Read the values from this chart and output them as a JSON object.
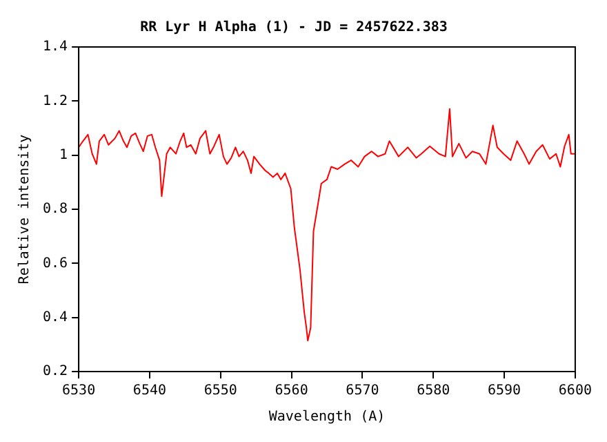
{
  "chart_data": {
    "type": "line",
    "title": "RR Lyr H Alpha (1) - JD = 2457622.383",
    "xlabel": "Wavelength (A)",
    "ylabel": "Relative intensity",
    "xlim": [
      6530,
      6600
    ],
    "ylim": [
      0.2,
      1.4
    ],
    "xticks": [
      6530,
      6540,
      6550,
      6560,
      6570,
      6580,
      6590,
      6600
    ],
    "yticks": [
      0.2,
      0.4,
      0.6,
      0.8,
      1,
      1.2,
      1.4
    ],
    "grid": false,
    "legend": false,
    "marker": "none",
    "line_style": "solid",
    "series": [
      {
        "color": "#ff0000",
        "x": [
          6530.0,
          6530.6,
          6531.3,
          6531.9,
          6532.5,
          6532.9,
          6533.6,
          6534.2,
          6535.1,
          6535.7,
          6536.3,
          6536.8,
          6537.4,
          6538.0,
          6538.6,
          6539.1,
          6539.7,
          6540.3,
          6540.8,
          6541.4,
          6541.7,
          6542.4,
          6542.9,
          6543.7,
          6544.3,
          6544.8,
          6545.2,
          6545.8,
          6546.5,
          6547.1,
          6547.9,
          6548.5,
          6549.0,
          6549.8,
          6550.4,
          6550.9,
          6551.5,
          6552.1,
          6552.6,
          6553.2,
          6553.8,
          6554.3,
          6554.7,
          6555.5,
          6556.3,
          6556.8,
          6557.4,
          6558.0,
          6558.5,
          6559.1,
          6559.9,
          6560.4,
          6561.2,
          6561.8,
          6562.1,
          6562.3,
          6562.7,
          6563.1,
          6563.7,
          6564.2,
          6565.0,
          6565.6,
          6566.5,
          6567.5,
          6568.4,
          6569.4,
          6570.3,
          6571.3,
          6572.2,
          6573.2,
          6573.8,
          6575.1,
          6576.4,
          6577.6,
          6578.3,
          6579.5,
          6580.8,
          6581.7,
          6582.3,
          6582.7,
          6583.6,
          6584.6,
          6585.5,
          6586.5,
          6587.4,
          6588.4,
          6589.0,
          6589.9,
          6590.9,
          6591.8,
          6592.8,
          6593.5,
          6594.5,
          6595.4,
          6596.4,
          6597.3,
          6597.9,
          6598.5,
          6599.1,
          6599.4,
          6600.0
        ],
        "values": [
          1.029,
          1.052,
          1.076,
          1.005,
          0.967,
          1.052,
          1.076,
          1.038,
          1.062,
          1.09,
          1.052,
          1.029,
          1.071,
          1.081,
          1.043,
          1.014,
          1.071,
          1.076,
          1.029,
          0.981,
          0.848,
          1.005,
          1.029,
          1.005,
          1.052,
          1.081,
          1.029,
          1.038,
          1.005,
          1.062,
          1.09,
          1.005,
          1.029,
          1.076,
          0.995,
          0.967,
          0.99,
          1.029,
          0.995,
          1.014,
          0.981,
          0.933,
          0.995,
          0.967,
          0.943,
          0.933,
          0.919,
          0.933,
          0.91,
          0.933,
          0.876,
          0.733,
          0.576,
          0.419,
          0.362,
          0.314,
          0.362,
          0.719,
          0.814,
          0.895,
          0.91,
          0.957,
          0.948,
          0.967,
          0.981,
          0.957,
          0.995,
          1.014,
          0.995,
          1.005,
          1.052,
          0.995,
          1.029,
          0.99,
          1.005,
          1.033,
          1.005,
          0.995,
          1.171,
          0.995,
          1.043,
          0.99,
          1.014,
          1.005,
          0.967,
          1.11,
          1.029,
          1.005,
          0.981,
          1.052,
          1.005,
          0.967,
          1.014,
          1.038,
          0.986,
          1.005,
          0.957,
          1.033,
          1.076,
          1.005,
          1.005
        ]
      }
    ]
  }
}
